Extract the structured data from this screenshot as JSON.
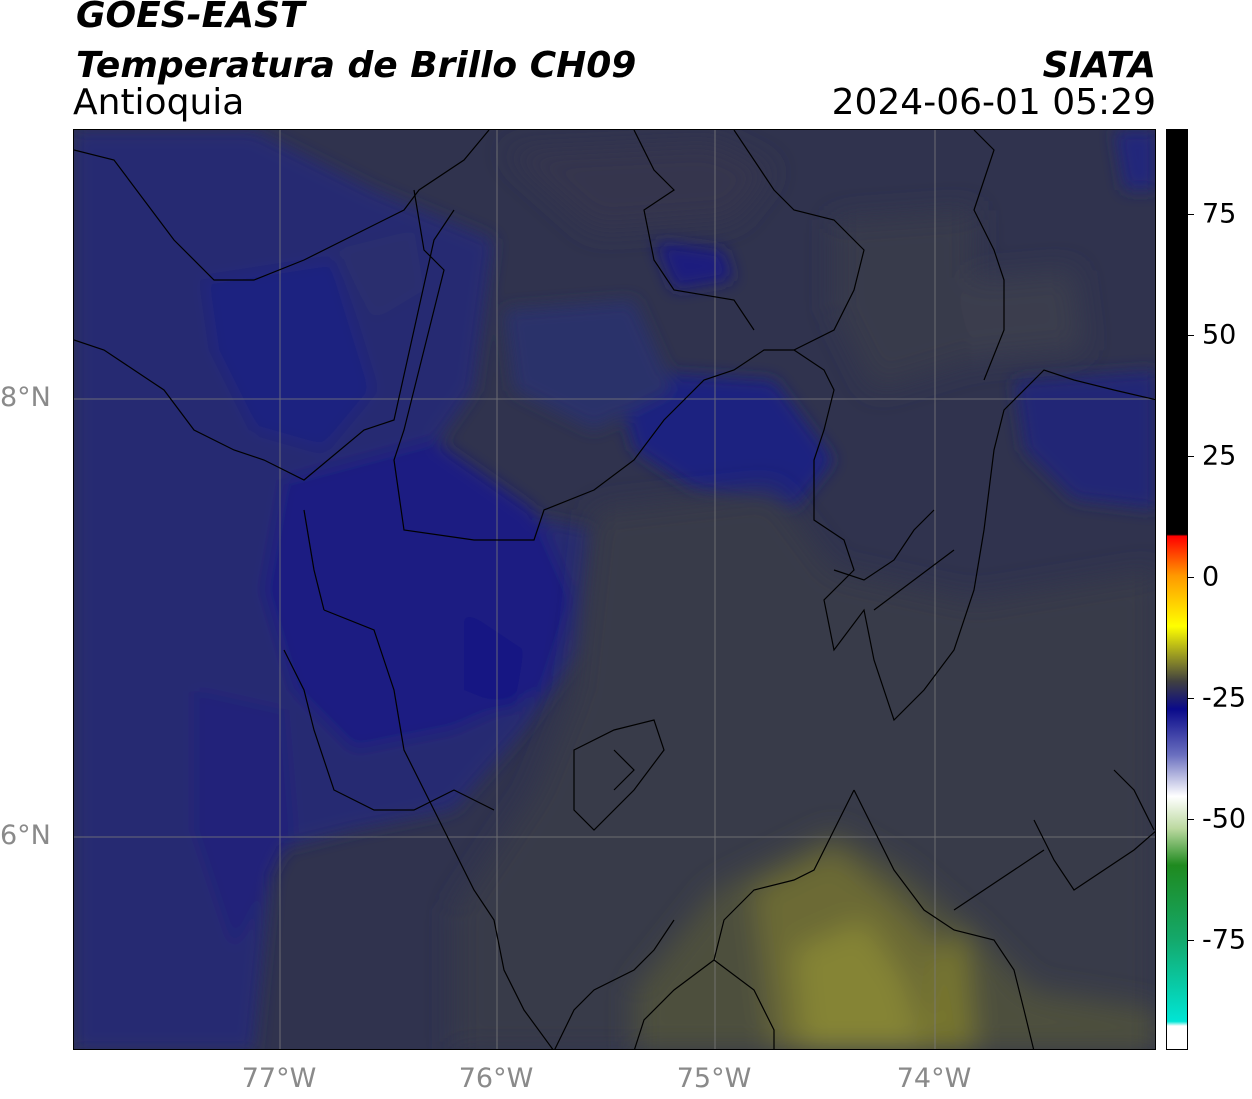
{
  "header": {
    "satellite": "GOES-EAST",
    "product": "Temperatura de Brillo CH09",
    "region": "Antioquia",
    "agency": "SIATA",
    "timestamp": "2024-06-01 05:29"
  },
  "map": {
    "lat_labels": [
      "8°N",
      "6°N"
    ],
    "lon_labels": [
      "77°W",
      "76°W",
      "75°W",
      "74°W"
    ],
    "colors": {
      "dark_blue": "#1a1d78",
      "mid_blue": "#272c6a",
      "gray": "#363848",
      "olive": "#55552e",
      "yellow_olive": "#808032",
      "border": "#000000"
    }
  },
  "colorbar": {
    "ticks": [
      "75",
      "50",
      "25",
      "0",
      "-25",
      "-50",
      "-75"
    ],
    "colors": {
      "black": "#000000",
      "red": "#ff0000",
      "orange": "#ff9900",
      "yellow": "#ffff00",
      "dark_gray": "#404040",
      "navy": "#0a0a8a",
      "white": "#ffffff",
      "green": "#1f8a1f",
      "cyan": "#00e5d5"
    }
  }
}
